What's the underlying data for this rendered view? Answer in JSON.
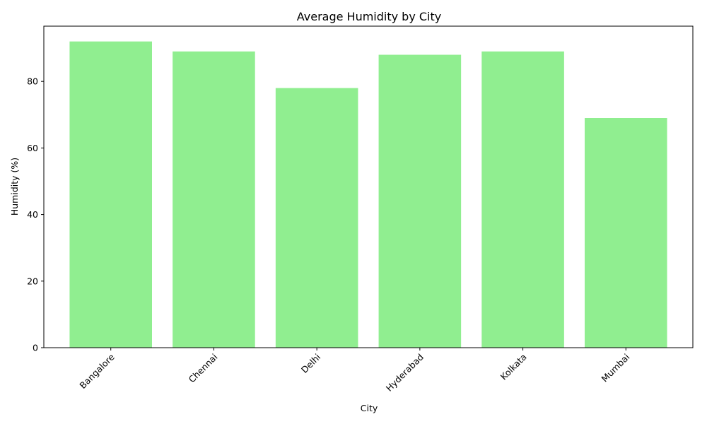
{
  "chart_data": {
    "type": "bar",
    "title": "Average Humidity by City",
    "xlabel": "City",
    "ylabel": "Humidity (%)",
    "categories": [
      "Bangalore",
      "Chennai",
      "Delhi",
      "Hyderabad",
      "Kolkata",
      "Mumbai"
    ],
    "values": [
      92,
      89,
      78,
      88,
      89,
      69
    ],
    "ylim": [
      0,
      96.6
    ],
    "yticks": [
      0,
      20,
      40,
      60,
      80
    ],
    "bar_color": "#90ee90",
    "grid": false,
    "legend": "none",
    "xtick_rotation_deg": 45
  }
}
